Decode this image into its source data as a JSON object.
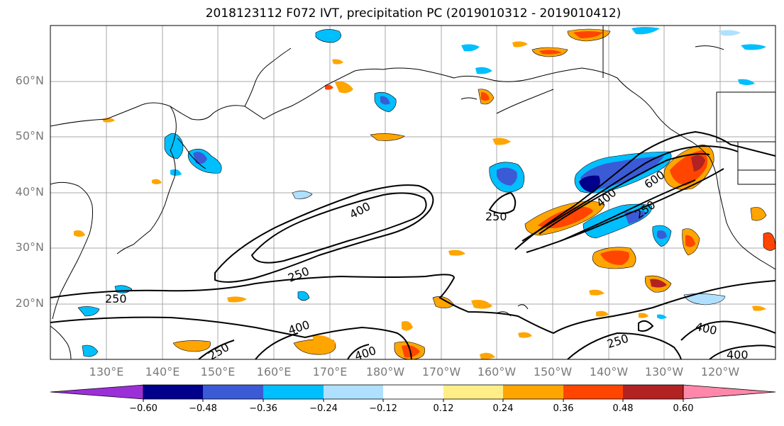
{
  "title": "2018123112 F072 IVT, precipitation PC (2019010312 - 2019010412)",
  "map": {
    "lat_labels": [
      "60°N",
      "50°N",
      "40°N",
      "30°N",
      "20°N"
    ],
    "lon_labels": [
      "130°E",
      "140°E",
      "150°E",
      "160°E",
      "170°E",
      "180°W",
      "170°W",
      "160°W",
      "150°W",
      "140°W",
      "130°W",
      "120°W"
    ],
    "ivt_contour_labels": [
      "400",
      "250",
      "250",
      "400",
      "400",
      "600",
      "250",
      "250",
      "400",
      "250",
      "400",
      "250",
      "400"
    ],
    "colors": {
      "coast": "#000000",
      "grid": "#a9a9a9",
      "contour": "#000000"
    }
  },
  "colorbar": {
    "colors": [
      "#9b30d8",
      "#00008b",
      "#3b5bd6",
      "#00bfff",
      "#b0e0ff",
      "#ffffff",
      "#ffee88",
      "#ffa500",
      "#ff4500",
      "#b22222",
      "#ff88aa"
    ],
    "tick_labels": [
      "−0.60",
      "−0.48",
      "−0.36",
      "−0.24",
      "−0.12",
      "0.12",
      "0.24",
      "0.36",
      "0.48",
      "0.60"
    ]
  }
}
